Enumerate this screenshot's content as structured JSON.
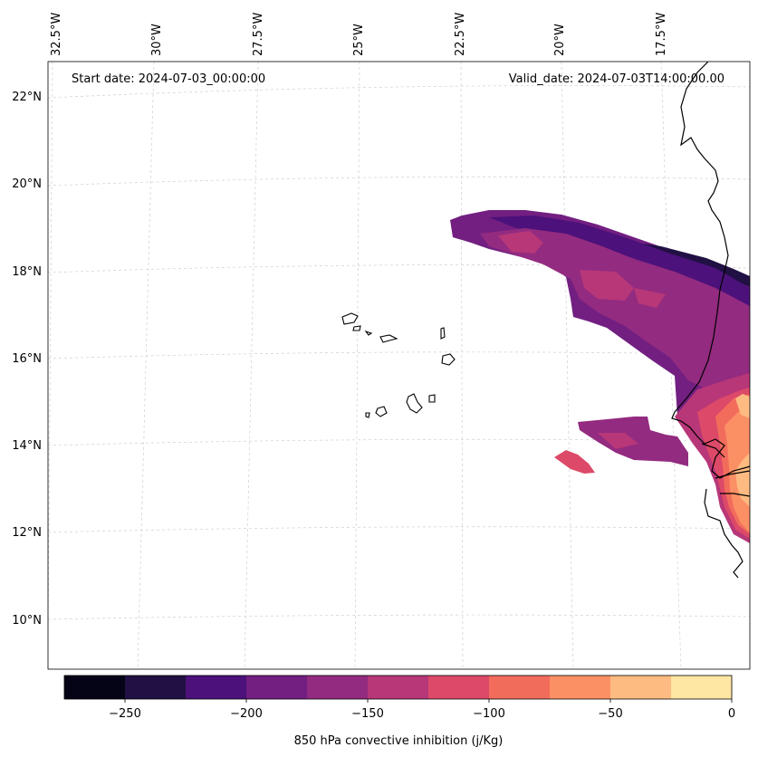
{
  "map": {
    "start_date_text": "Start date: 2024-07-03_00:00:00",
    "valid_date_text": "Valid_date: 2024-07-03T14:00:00.00",
    "lon_labels": [
      "32.5°W",
      "30°W",
      "27.5°W",
      "25°W",
      "22.5°W",
      "20°W",
      "17.5°W"
    ],
    "lat_labels": [
      "22°N",
      "20°N",
      "18°N",
      "16°N",
      "14°N",
      "12°N",
      "10°N"
    ]
  },
  "colorbar": {
    "label": "850 hPa convective inhibition (j/Kg)",
    "tick_labels": [
      "−250",
      "−200",
      "−150",
      "−100",
      "−50",
      "0"
    ],
    "colors": [
      "#050416",
      "#211044",
      "#4c117a",
      "#721f81",
      "#932b80",
      "#b73779",
      "#dd4968",
      "#f26c5c",
      "#fc9065",
      "#febb81",
      "#fee6a3"
    ]
  }
}
